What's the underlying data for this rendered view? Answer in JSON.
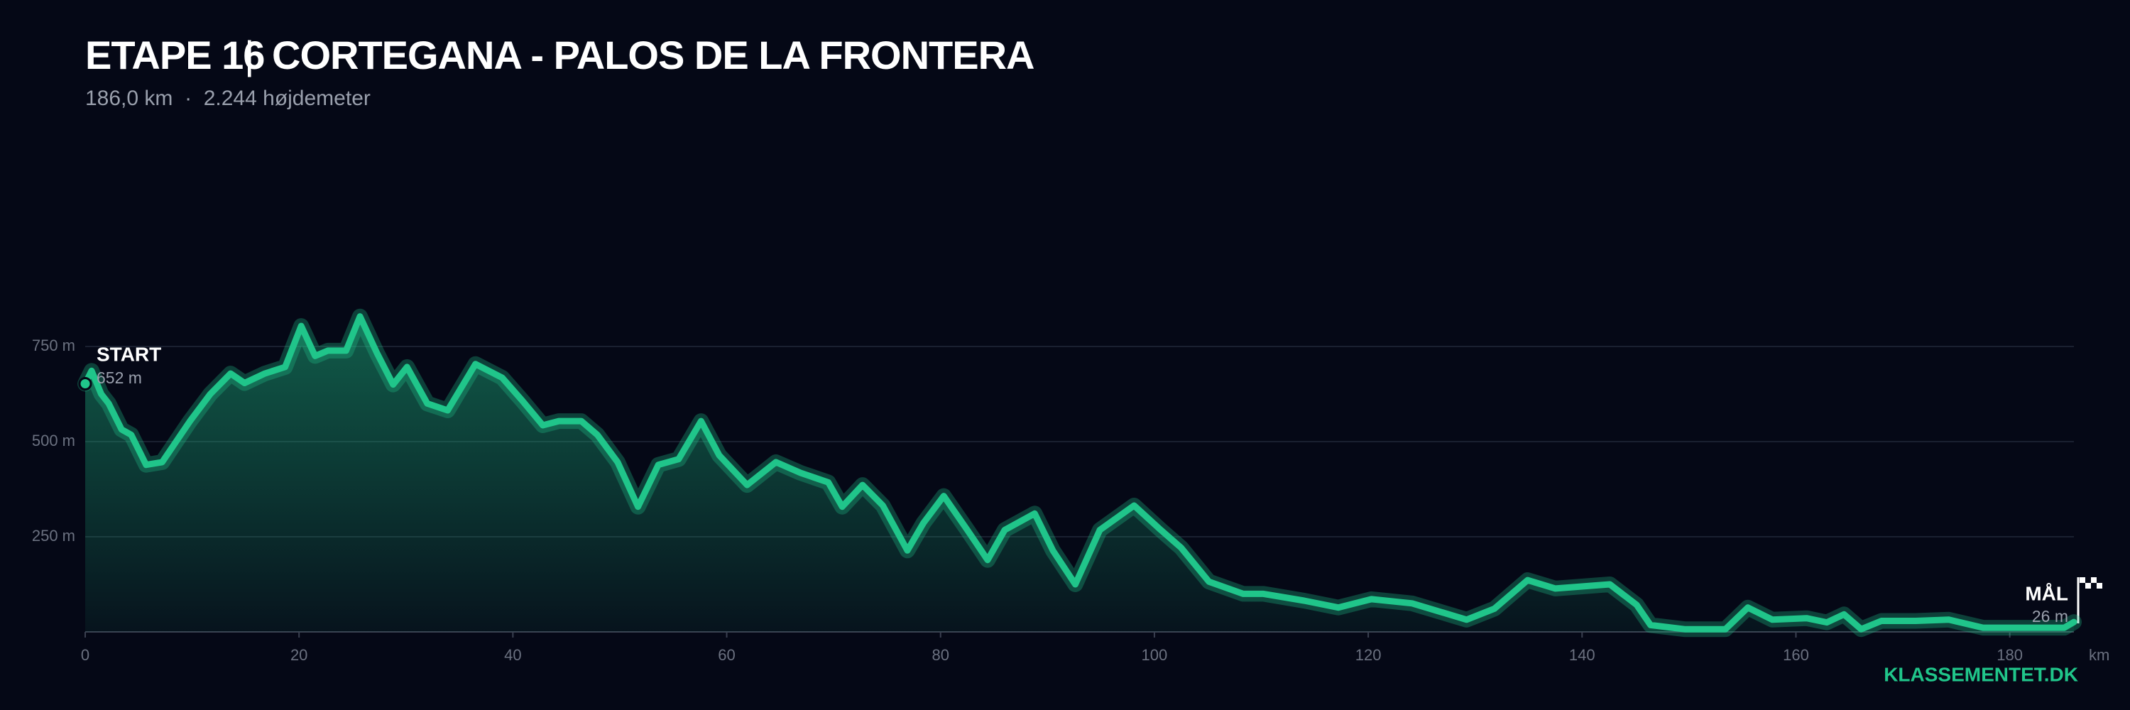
{
  "chart_data": {
    "type": "area",
    "stage": "ETAPE 16",
    "separator": "|",
    "title": "CORTEGANA - PALOS DE LA FRONTERA",
    "subtitle": "186,0 km  ·  2.244 højdemeter",
    "x_label": "km",
    "x": [
      0,
      0.6,
      1.5,
      2.2,
      3.4,
      4.3,
      5.7,
      7.2,
      8.5,
      9.8,
      11.7,
      13.6,
      14.9,
      16.8,
      18.7,
      20.2,
      21.5,
      22.7,
      24.4,
      25.7,
      27.3,
      28.8,
      30.1,
      32.0,
      33.9,
      36.5,
      39.0,
      40.9,
      42.8,
      44.3,
      46.4,
      47.9,
      49.8,
      51.7,
      53.6,
      55.5,
      57.6,
      59.3,
      61.9,
      64.6,
      66.9,
      69.5,
      70.8,
      72.7,
      74.6,
      76.9,
      78.4,
      80.3,
      82.5,
      84.4,
      86.0,
      88.8,
      90.5,
      92.6,
      94.9,
      98.1,
      100.6,
      102.5,
      105.1,
      108.3,
      110.2,
      114.0,
      117.2,
      120.3,
      124.1,
      129.2,
      131.8,
      134.9,
      137.5,
      142.6,
      145.1,
      146.4,
      149.6,
      153.4,
      155.5,
      157.8,
      161.0,
      162.9,
      164.5,
      166.1,
      168.0,
      171.2,
      174.3,
      177.5,
      181.3,
      185.1,
      186.0
    ],
    "values": [
      652,
      686,
      625,
      600,
      532,
      518,
      439,
      446,
      500,
      554,
      625,
      679,
      654,
      679,
      696,
      804,
      725,
      739,
      739,
      829,
      732,
      650,
      696,
      600,
      582,
      704,
      668,
      607,
      543,
      554,
      554,
      518,
      446,
      329,
      439,
      454,
      554,
      464,
      386,
      446,
      418,
      393,
      329,
      386,
      332,
      214,
      286,
      357,
      268,
      189,
      268,
      311,
      214,
      125,
      268,
      332,
      268,
      221,
      132,
      100,
      100,
      82,
      64,
      86,
      75,
      32,
      61,
      136,
      114,
      125,
      71,
      18,
      7,
      7,
      64,
      32,
      36,
      25,
      46,
      7,
      29,
      29,
      32,
      11,
      11,
      11,
      26
    ],
    "color": "#20c58a",
    "xlim": [
      0,
      186
    ],
    "ylim": [
      0,
      1000
    ],
    "xticks": [
      0,
      20,
      40,
      60,
      80,
      100,
      120,
      140,
      160,
      180
    ],
    "yticks": [
      {
        "value": 250,
        "label": "250 m"
      },
      {
        "value": 500,
        "label": "500 m"
      },
      {
        "value": 750,
        "label": "750 m"
      }
    ],
    "grid": true,
    "start": {
      "label": "START",
      "elevation_label": "652 m"
    },
    "finish": {
      "label": "MÅL",
      "elevation_label": "26 m"
    },
    "source": "KLASSEMENTET.DK"
  }
}
